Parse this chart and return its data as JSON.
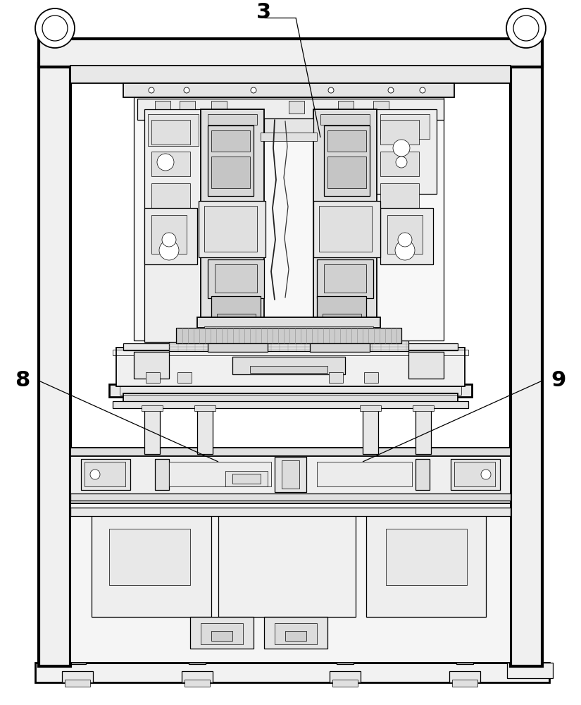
{
  "bg_color": "#ffffff",
  "lc": "#000000",
  "label_3": "3",
  "label_8": "8",
  "label_9": "9",
  "fig_width": 8.25,
  "fig_height": 10.0
}
